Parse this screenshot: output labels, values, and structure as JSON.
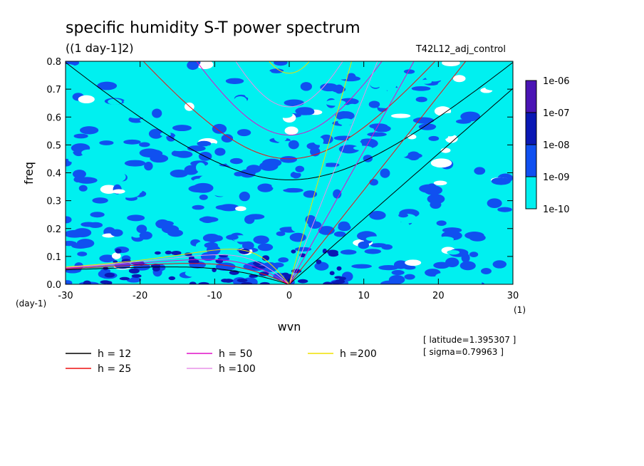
{
  "chart_data": {
    "type": "heatmap",
    "title": "specific humidity S-T power spectrum",
    "subtitle": "((1 day-1]2)",
    "run_label": "T42L12_adj_control",
    "xlabel": "wvn",
    "ylabel": "freq",
    "x_unit": "(1)",
    "y_unit": "(day-1)",
    "xlim": [
      -30,
      30
    ],
    "ylim": [
      0,
      0.8
    ],
    "x_ticks": [
      "-30",
      "-20",
      "-10",
      "0",
      "10",
      "20",
      "30"
    ],
    "y_ticks": [
      "0.0",
      "0.1",
      "0.2",
      "0.3",
      "0.4",
      "0.5",
      "0.6",
      "0.7",
      "0.8"
    ],
    "colorbar": {
      "labels": [
        "1e-06",
        "1e-07",
        "1e-08",
        "1e-09",
        "1e-10"
      ],
      "colors": [
        "#4a14b4",
        "#0a18b4",
        "#1050f0",
        "#00f0f0"
      ]
    },
    "field_colors": {
      "white": "#ffffff",
      "cyan": "#00f0f0",
      "blue": "#1050f0",
      "dark": "#0a18b4"
    },
    "dispersion_curves": [
      {
        "label": "h = 12",
        "color": "#000000"
      },
      {
        "label": "h = 25",
        "color": "#ee1111"
      },
      {
        "label": "h = 50",
        "color": "#e010c8"
      },
      {
        "label": "h =100",
        "color": "#e890e8"
      },
      {
        "label": "h =200",
        "color": "#f0e000"
      }
    ],
    "annotations": [
      "[ latitude=1.395307 ]",
      "[ sigma=0.79963 ]"
    ]
  }
}
